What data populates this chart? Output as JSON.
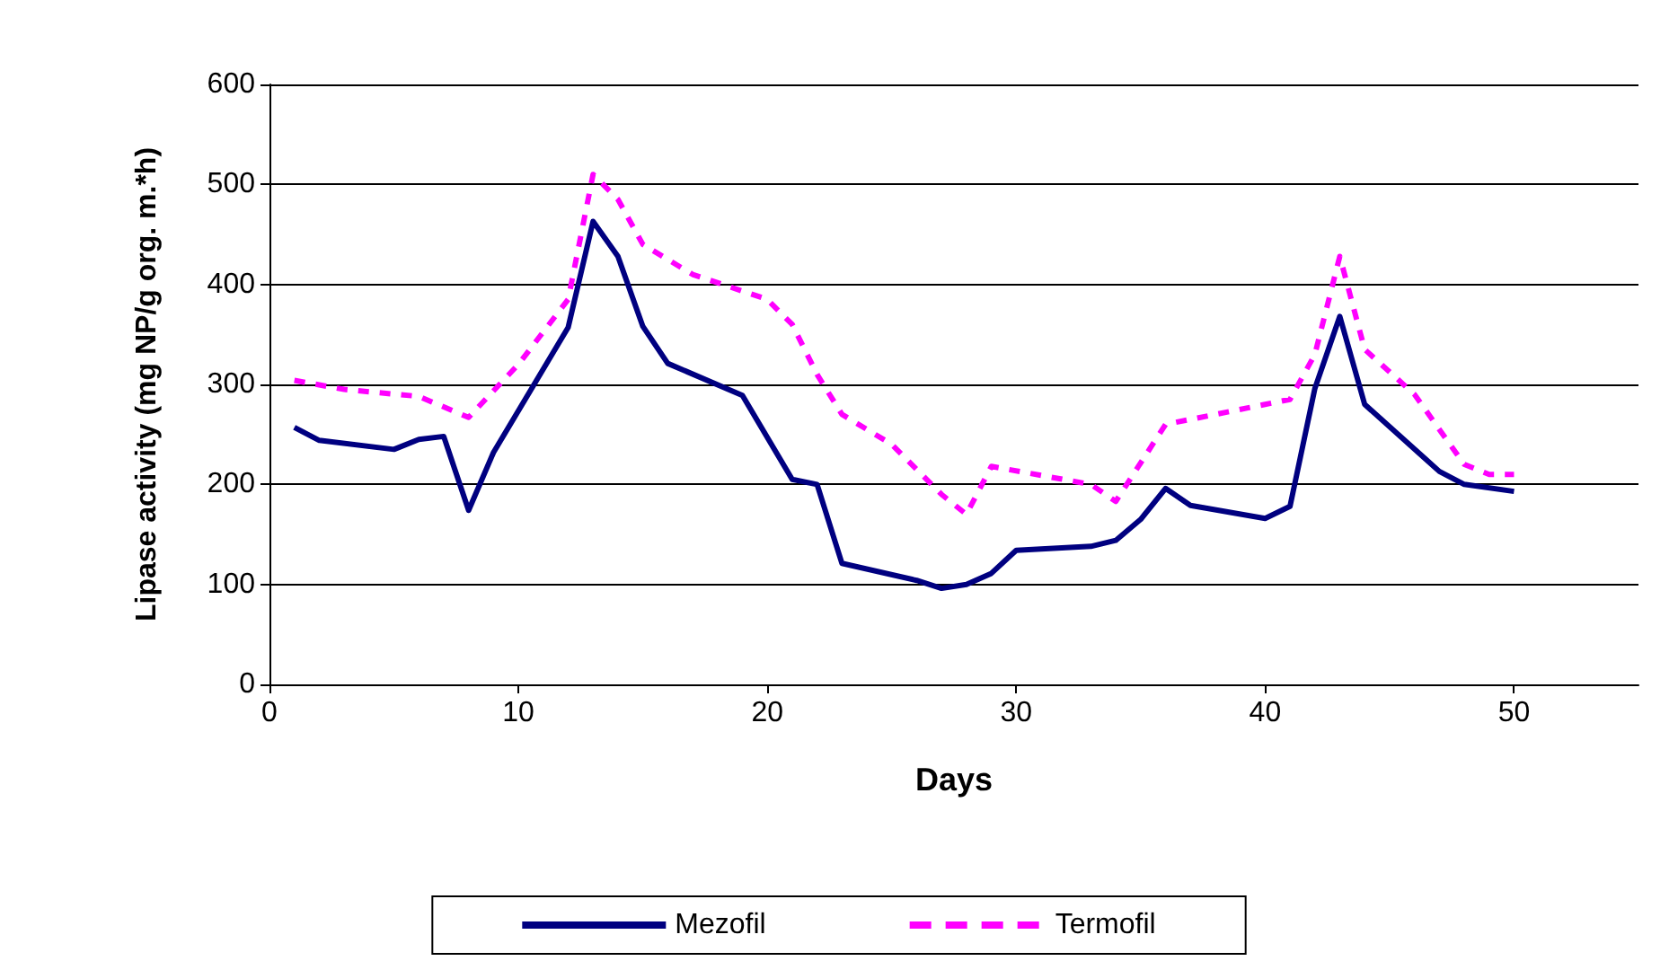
{
  "chart_data": {
    "type": "line",
    "xlabel": "Days",
    "ylabel": "Lipase activity (mg NP/g org. m.*h)",
    "xlim": [
      0,
      55
    ],
    "xticks": [
      0,
      10,
      20,
      30,
      40,
      50
    ],
    "ylim": [
      0,
      600
    ],
    "yticks": [
      0,
      100,
      200,
      300,
      400,
      500,
      600
    ],
    "grid": "y",
    "legend": "bottom",
    "marker": "none",
    "series": [
      {
        "name": "Mezofil",
        "color": "#000080",
        "line_style": "solid",
        "x": [
          1,
          2,
          5,
          6,
          7,
          8,
          9,
          12,
          13,
          14,
          15,
          16,
          19,
          21,
          22,
          23,
          26,
          27,
          28,
          29,
          30,
          33,
          34,
          35,
          36,
          37,
          40,
          41,
          42,
          43,
          44,
          47,
          48,
          50
        ],
        "values": [
          257,
          244,
          235,
          245,
          248,
          174,
          232,
          357,
          463,
          428,
          358,
          321,
          289,
          205,
          200,
          121,
          104,
          96,
          100,
          111,
          134,
          138,
          144,
          165,
          196,
          179,
          166,
          178,
          296,
          368,
          280,
          213,
          200,
          193
        ]
      },
      {
        "name": "Termofil",
        "color": "#ff00ff",
        "line_style": "dashed",
        "x": [
          1,
          3,
          6,
          8,
          10,
          12,
          13,
          14,
          15,
          17,
          20,
          21,
          22,
          23,
          25,
          27,
          28,
          29,
          33,
          34,
          36,
          40,
          41,
          42,
          43,
          44,
          46,
          48,
          49,
          50
        ],
        "values": [
          304,
          295,
          288,
          267,
          320,
          385,
          510,
          485,
          440,
          410,
          385,
          360,
          310,
          270,
          240,
          190,
          170,
          218,
          200,
          183,
          260,
          280,
          285,
          330,
          428,
          335,
          290,
          220,
          210,
          210
        ]
      }
    ]
  }
}
